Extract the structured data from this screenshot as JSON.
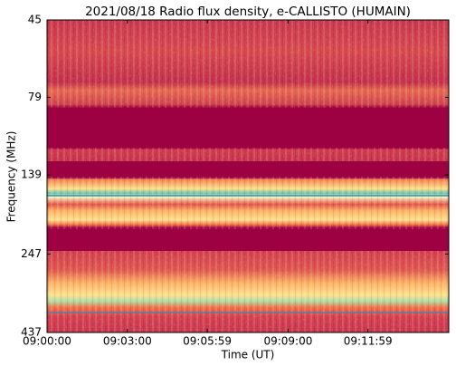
{
  "chart_data": {
    "type": "spectrogram",
    "title": "2021/08/18  Radio flux density, e-CALLISTO (HUMAIN)",
    "xlabel": "Time (UT)",
    "ylabel": "Frequency (MHz)",
    "xlim": [
      32400,
      33300
    ],
    "xticks": [
      {
        "value": 32400,
        "label": "09:00:00"
      },
      {
        "value": 32580,
        "label": "09:03:00"
      },
      {
        "value": 32759,
        "label": "09:05:59"
      },
      {
        "value": 32940,
        "label": "09:09:00"
      },
      {
        "value": 33119,
        "label": "09:11:59"
      }
    ],
    "ylim": [
      437,
      45
    ],
    "yticks": [
      45,
      79,
      139,
      247,
      437
    ],
    "ylog": true
  }
}
